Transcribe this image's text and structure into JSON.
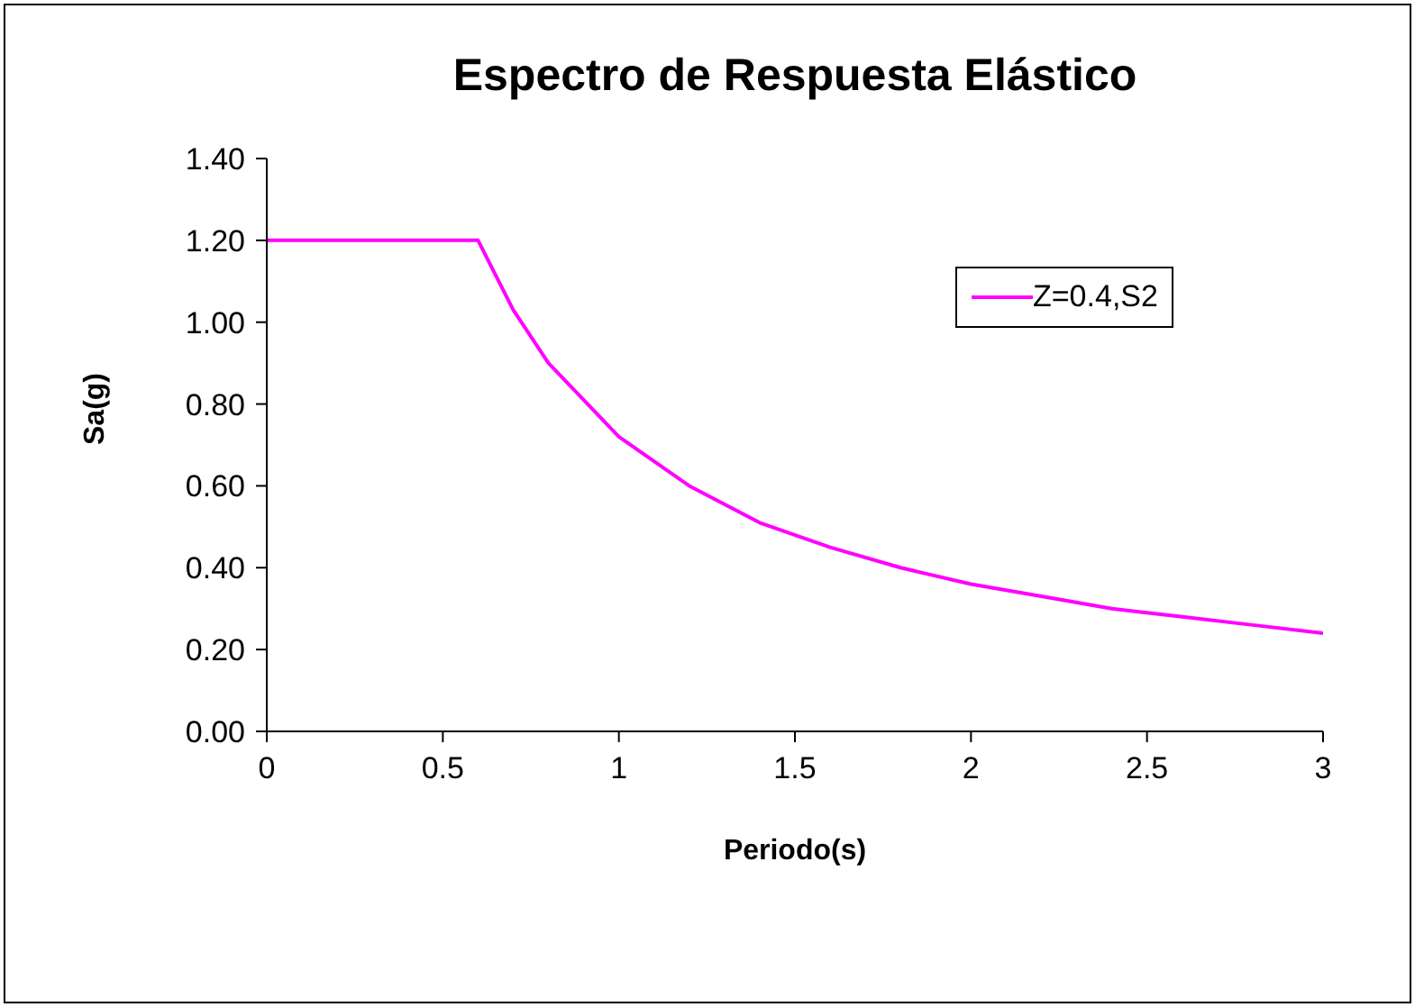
{
  "chart_data": {
    "type": "line",
    "title": "Espectro de Respuesta Elástico",
    "xlabel": "Periodo(s)",
    "ylabel": "Sa(g)",
    "x": [
      0,
      0.6,
      0.7,
      0.8,
      1.0,
      1.2,
      1.4,
      1.6,
      1.8,
      2.0,
      2.2,
      2.4,
      2.6,
      2.8,
      3.0
    ],
    "series": [
      {
        "name": "Z=0.4,S2",
        "color": "#ff00ff",
        "values": [
          1.2,
          1.2,
          1.03,
          0.9,
          0.72,
          0.6,
          0.51,
          0.45,
          0.4,
          0.36,
          0.33,
          0.3,
          0.28,
          0.26,
          0.24
        ]
      }
    ],
    "xlim": [
      0,
      3
    ],
    "xticks": [
      0,
      0.5,
      1,
      1.5,
      2,
      2.5,
      3
    ],
    "ylim": [
      0,
      1.4
    ],
    "yticks": [
      {
        "value": 0,
        "label": "0.00"
      },
      {
        "value": 0.2,
        "label": "0.20"
      },
      {
        "value": 0.4,
        "label": "0.40"
      },
      {
        "value": 0.6,
        "label": "0.60"
      },
      {
        "value": 0.8,
        "label": "0.80"
      },
      {
        "value": 1.0,
        "label": "1.00"
      },
      {
        "value": 1.2,
        "label": "1.20"
      },
      {
        "value": 1.4,
        "label": "1.40"
      }
    ],
    "grid": false,
    "legend": "top right",
    "marker": "none",
    "line_style": "solid"
  }
}
